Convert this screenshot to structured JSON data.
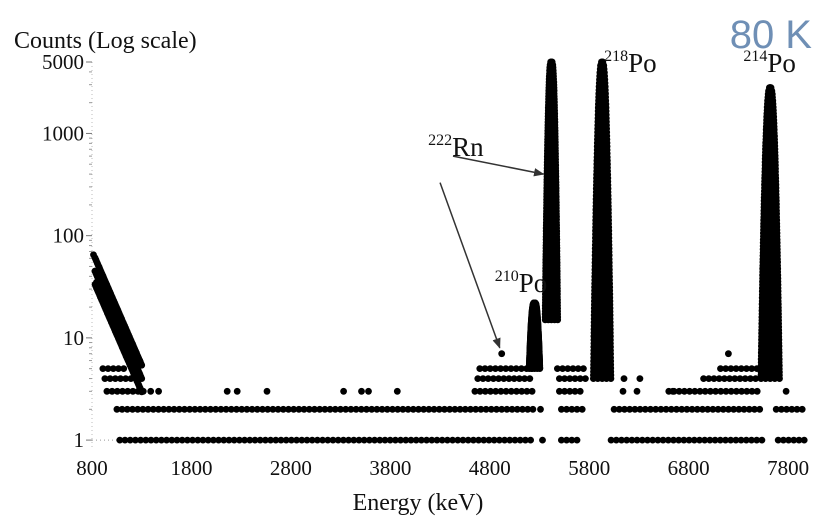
{
  "header": {
    "temperature_label": "80 K"
  },
  "colors": {
    "points": "#000000",
    "temperature": "#6f8fb5",
    "text": "#111111"
  },
  "chart_data": {
    "type": "scatter",
    "title": "",
    "ylabel": "Counts (Log scale)",
    "xlabel": "Energy (keV)",
    "y_scale": "log",
    "xlim": [
      800,
      8000
    ],
    "ylim": [
      0.8,
      5000
    ],
    "x_ticks": [
      800,
      1800,
      2800,
      3800,
      4800,
      5800,
      6800,
      7800
    ],
    "x_tick_labels": [
      "800",
      "1800",
      "2800",
      "3800",
      "4800",
      "5800",
      "6800",
      "7800"
    ],
    "y_ticks": [
      1,
      10,
      100,
      1000,
      5000
    ],
    "y_tick_labels": [
      "1",
      "10",
      "100",
      "1000",
      "5000"
    ],
    "grid": false,
    "legend": "none",
    "annotations": [
      {
        "text": "222Rn",
        "base": "Rn",
        "superscript": "222",
        "x": 4180,
        "y": 600
      },
      {
        "text": "210Po",
        "base": "Po",
        "superscript": "210",
        "x": 4850,
        "y": 28
      },
      {
        "text": "218Po",
        "base": "Po",
        "superscript": "218",
        "x": 5950,
        "y": 4000
      },
      {
        "text": "214Po",
        "base": "Po",
        "superscript": "214",
        "x": 7350,
        "y": 4000
      }
    ],
    "arrows": [
      {
        "from_x": 4430,
        "from_y": 600,
        "to_x": 5340,
        "to_y": 400
      },
      {
        "from_x": 4300,
        "from_y": 330,
        "to_x": 4900,
        "to_y": 8
      }
    ],
    "series": [
      {
        "band_levels": [
          1,
          2,
          3,
          4,
          5
        ],
        "band_ranges": [
          [
            [
              1080,
              5240
            ],
            [
              5330,
              5380
            ],
            [
              5520,
              5700
            ],
            [
              6020,
              7560
            ],
            [
              7700,
              8000
            ]
          ],
          [
            [
              1050,
              5260
            ],
            [
              5520,
              5750
            ],
            [
              6050,
              7540
            ],
            [
              7680,
              7980
            ]
          ],
          [
            [
              950,
              1350
            ],
            [
              4650,
              5250
            ],
            [
              5500,
              5760
            ],
            [
              6600,
              7520
            ]
          ],
          [
            [
              930,
              1200
            ],
            [
              4680,
              5250
            ],
            [
              5500,
              5780
            ],
            [
              6950,
              7520
            ]
          ],
          [
            [
              910,
              1130
            ],
            [
              4700,
              5250
            ],
            [
              5480,
              5790
            ],
            [
              7120,
              7520
            ]
          ]
        ],
        "sparse_points": [
          [
            1280,
            6
          ],
          [
            1390,
            3
          ],
          [
            1470,
            3
          ],
          [
            2160,
            3
          ],
          [
            2260,
            3
          ],
          [
            2560,
            3
          ],
          [
            3330,
            3
          ],
          [
            3510,
            3
          ],
          [
            3580,
            3
          ],
          [
            3870,
            3
          ],
          [
            6140,
            3
          ],
          [
            6280,
            3
          ],
          [
            6640,
            3
          ],
          [
            6150,
            4
          ],
          [
            6310,
            4
          ],
          [
            7780,
            3
          ],
          [
            5310,
            2
          ],
          [
            5300,
            6
          ],
          [
            4920,
            7
          ],
          [
            7200,
            7
          ]
        ],
        "tail": {
          "x_start": 830,
          "x_end": 1300,
          "y_start": 45,
          "y_end": 4
        },
        "tail_top_points": [
          [
            815,
            65
          ],
          [
            830,
            45
          ],
          [
            845,
            35
          ]
        ],
        "peaks": [
          {
            "label": "222Rn",
            "center": 5420,
            "width": 55,
            "y_max": 5000,
            "y_min": 15
          },
          {
            "label": "218Po",
            "center": 5930,
            "width": 80,
            "y_max": 5000,
            "y_min": 4
          },
          {
            "label": "214Po",
            "center": 7620,
            "width": 85,
            "y_max": 2800,
            "y_min": 4
          },
          {
            "label": "210Po",
            "center": 5250,
            "width": 45,
            "y_max": 22,
            "y_min": 5
          }
        ]
      }
    ]
  }
}
